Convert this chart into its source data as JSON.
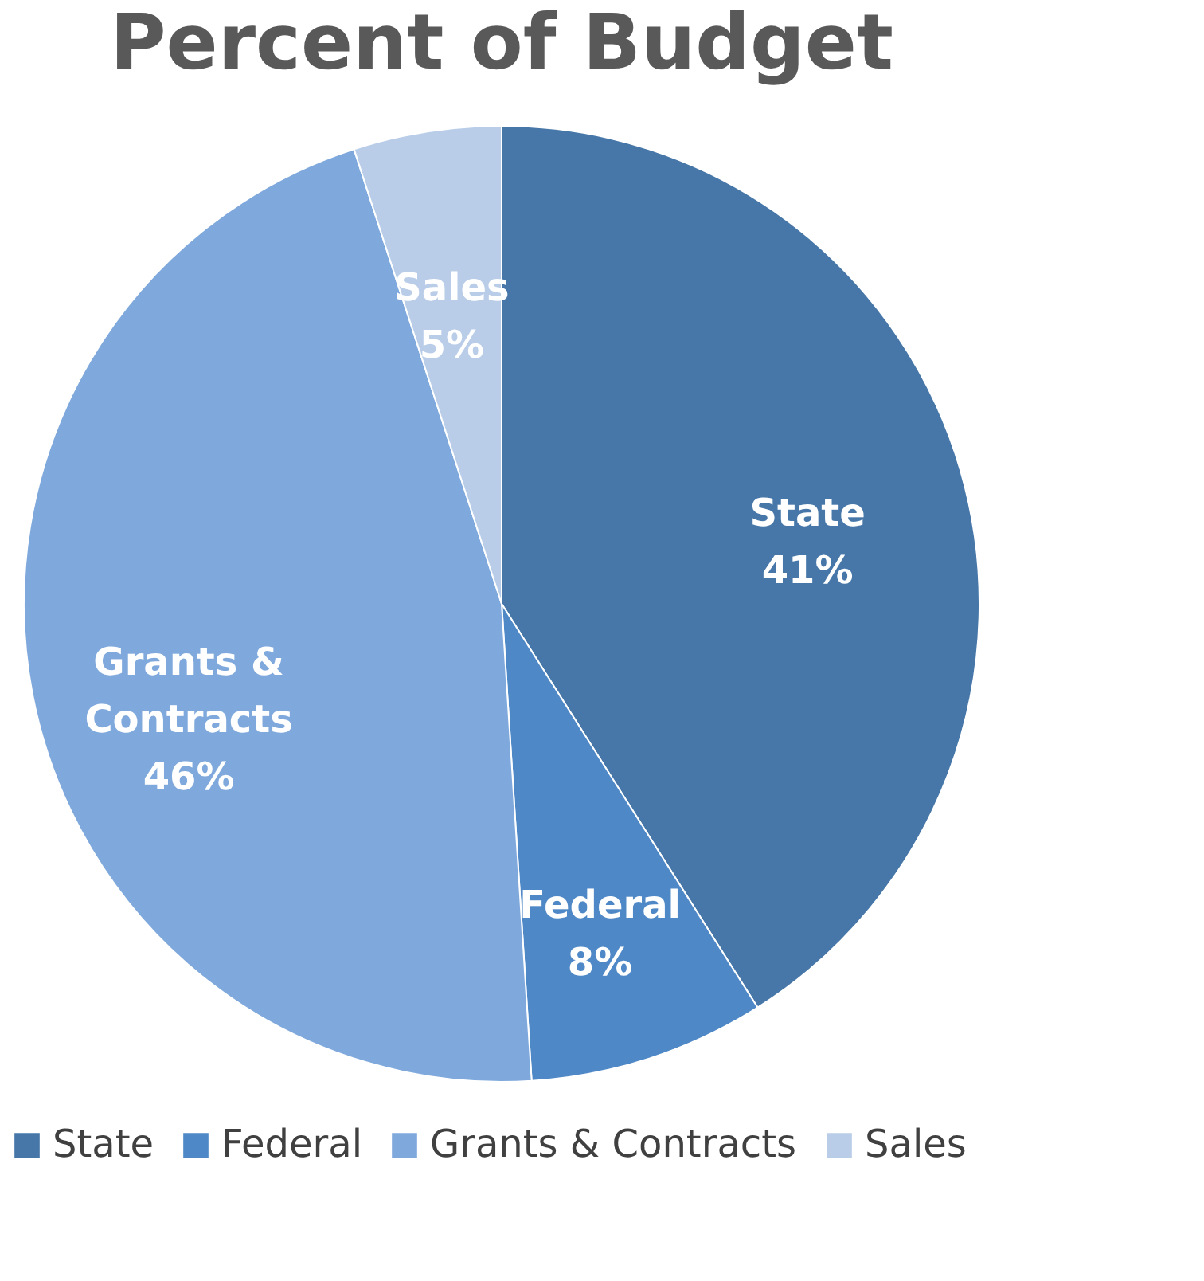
{
  "chart_data": {
    "type": "pie",
    "title": "Percent of Budget",
    "categories": [
      "State",
      "Federal",
      "Grants & Contracts",
      "Sales"
    ],
    "values": [
      41,
      8,
      46,
      5
    ],
    "colors": [
      "#4677a8",
      "#4f88c6",
      "#7fa9dc",
      "#b9cde8"
    ],
    "value_labels": [
      "41%",
      "8%",
      "46%",
      "5%"
    ],
    "legend": "bottom"
  }
}
